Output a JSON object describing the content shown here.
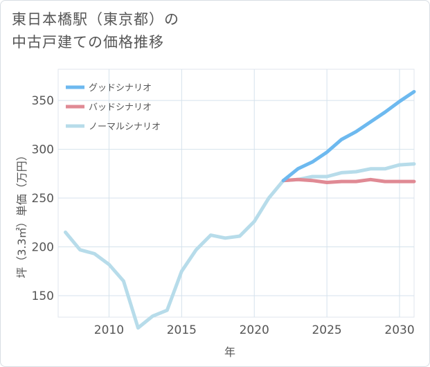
{
  "title": {
    "line1": "東日本橋駅（東京都）の",
    "line2": "中古戸建ての価格推移"
  },
  "chart_data": {
    "type": "line",
    "xlabel": "年",
    "ylabel": "坪（3.3㎡）単価（万円）",
    "xlim": [
      2006.5,
      2031
    ],
    "ylim": [
      128,
      382
    ],
    "xticks": [
      2010,
      2015,
      2020,
      2025,
      2030
    ],
    "yticks": [
      150,
      200,
      250,
      300,
      350
    ],
    "grid": true,
    "legend_position": "top-left",
    "series": [
      {
        "name": "グッドシナリオ",
        "color": "#6db9ef",
        "x": [
          2022,
          2023,
          2024,
          2025,
          2026,
          2027,
          2028,
          2029,
          2030,
          2031
        ],
        "values": [
          268,
          280,
          287,
          297,
          310,
          318,
          328,
          338,
          349,
          359
        ]
      },
      {
        "name": "バッドシナリオ",
        "color": "#e08a94",
        "x": [
          2022,
          2023,
          2024,
          2025,
          2026,
          2027,
          2028,
          2029,
          2030,
          2031
        ],
        "values": [
          268,
          269,
          268,
          266,
          267,
          267,
          269,
          267,
          267,
          267
        ]
      },
      {
        "name": "ノーマルシナリオ",
        "color": "#b7dcea",
        "x": [
          2007,
          2008,
          2009,
          2010,
          2011,
          2012,
          2013,
          2014,
          2015,
          2016,
          2017,
          2018,
          2019,
          2020,
          2021,
          2022,
          2023,
          2024,
          2025,
          2026,
          2027,
          2028,
          2029,
          2030,
          2031
        ],
        "values": [
          215,
          197,
          193,
          182,
          165,
          117,
          129,
          135,
          175,
          197,
          212,
          209,
          211,
          226,
          250,
          268,
          269,
          272,
          272,
          276,
          277,
          280,
          280,
          284,
          285
        ]
      }
    ]
  }
}
